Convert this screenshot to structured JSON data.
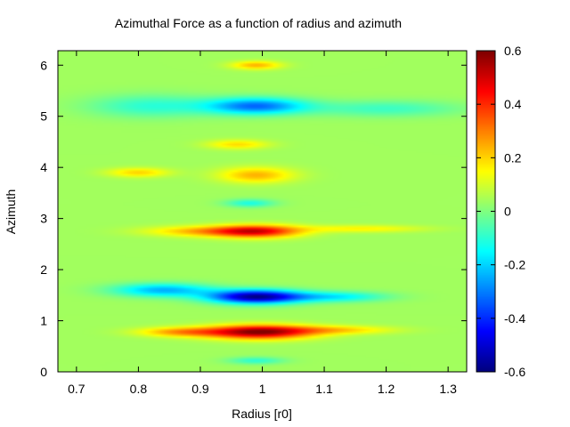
{
  "chart_data": {
    "type": "heatmap",
    "title": "Azimuthal Force as a function of radius and azimuth",
    "xlabel": "Radius [r0]",
    "ylabel": "Azimuth",
    "xlim": [
      0.67,
      1.33
    ],
    "ylim": [
      0,
      6.2832
    ],
    "x_ticks": [
      0.7,
      0.8,
      0.9,
      1,
      1.1,
      1.2,
      1.3
    ],
    "x_tick_labels": [
      "0.7",
      "0.8",
      "0.9",
      "1",
      "1.1",
      "1.2",
      "1.3"
    ],
    "y_ticks": [
      0,
      1,
      2,
      3,
      4,
      5,
      6
    ],
    "y_tick_labels": [
      "0",
      "1",
      "2",
      "3",
      "4",
      "5",
      "6"
    ],
    "colorbar": {
      "range": [
        -0.6,
        0.6
      ],
      "ticks": [
        -0.6,
        -0.4,
        -0.2,
        0,
        0.2,
        0.4,
        0.6
      ],
      "tick_labels": [
        "-0.6",
        "-0.4",
        "-0.2",
        "0",
        "0.2",
        "0.4",
        "0.6"
      ],
      "colormap": "jet"
    },
    "grid": false,
    "background_value": 0.04,
    "features": [
      {
        "r_center": 0.995,
        "phi_center": 0.78,
        "r_width": 0.085,
        "phi_width": 0.13,
        "value": 0.55
      },
      {
        "r_center": 0.87,
        "phi_center": 0.78,
        "r_width": 0.07,
        "phi_width": 0.09,
        "value": 0.22
      },
      {
        "r_center": 1.12,
        "phi_center": 0.82,
        "r_width": 0.09,
        "phi_width": 0.08,
        "value": 0.16
      },
      {
        "r_center": 0.99,
        "phi_center": 1.47,
        "r_width": 0.075,
        "phi_width": 0.13,
        "value": -0.62
      },
      {
        "r_center": 0.84,
        "phi_center": 1.6,
        "r_width": 0.08,
        "phi_width": 0.13,
        "value": -0.28
      },
      {
        "r_center": 1.12,
        "phi_center": 1.47,
        "r_width": 0.08,
        "phi_width": 0.1,
        "value": -0.2
      },
      {
        "r_center": 0.99,
        "phi_center": 2.75,
        "r_width": 0.07,
        "phi_width": 0.12,
        "value": 0.42
      },
      {
        "r_center": 0.9,
        "phi_center": 2.75,
        "r_width": 0.09,
        "phi_width": 0.1,
        "value": 0.18
      },
      {
        "r_center": 1.16,
        "phi_center": 2.8,
        "r_width": 0.1,
        "phi_width": 0.07,
        "value": 0.12
      },
      {
        "r_center": 0.99,
        "phi_center": 0.22,
        "r_width": 0.045,
        "phi_width": 0.07,
        "value": -0.14
      },
      {
        "r_center": 0.98,
        "phi_center": 3.3,
        "r_width": 0.04,
        "phi_width": 0.08,
        "value": -0.16
      },
      {
        "r_center": 0.99,
        "phi_center": 3.85,
        "r_width": 0.06,
        "phi_width": 0.15,
        "value": 0.2
      },
      {
        "r_center": 0.96,
        "phi_center": 4.45,
        "r_width": 0.05,
        "phi_width": 0.09,
        "value": 0.15
      },
      {
        "r_center": 0.99,
        "phi_center": 5.2,
        "r_width": 0.08,
        "phi_width": 0.16,
        "value": -0.36
      },
      {
        "r_center": 0.82,
        "phi_center": 5.2,
        "r_width": 0.1,
        "phi_width": 0.22,
        "value": -0.14
      },
      {
        "r_center": 1.2,
        "phi_center": 5.15,
        "r_width": 0.12,
        "phi_width": 0.16,
        "value": -0.12
      },
      {
        "r_center": 0.99,
        "phi_center": 6.0,
        "r_width": 0.04,
        "phi_width": 0.08,
        "value": 0.2
      },
      {
        "r_center": 0.8,
        "phi_center": 3.9,
        "r_width": 0.05,
        "phi_width": 0.09,
        "value": 0.16
      }
    ]
  }
}
